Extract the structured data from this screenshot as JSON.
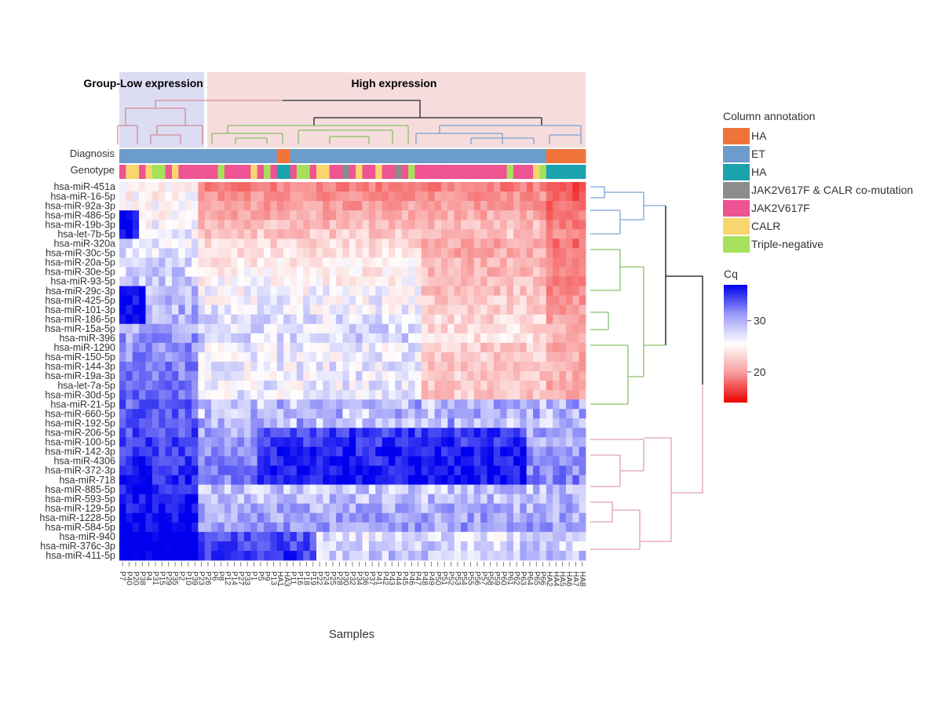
{
  "chart_data": {
    "type": "heatmap",
    "title": "",
    "xlabel": "Samples",
    "ylabel": "",
    "groups": {
      "prefix": "Group-",
      "items": [
        {
          "label": "Low expression",
          "color": "#dcdcf2"
        },
        {
          "label": "High expression",
          "color": "#f6dcdc"
        }
      ]
    },
    "row_annotation_labels": [
      "Diagnosis",
      "Genotype"
    ],
    "legend": {
      "title": "Column annotation",
      "position": "right",
      "items": [
        {
          "label": "HA",
          "color": "#f0743a"
        },
        {
          "label": "ET",
          "color": "#6c9ccb"
        },
        {
          "label": "HA",
          "color": "#1aa3ac"
        },
        {
          "label": "JAK2V617F & CALR co-mutation",
          "color": "#8c8c8c"
        },
        {
          "label": "JAK2V617F",
          "color": "#ee5392"
        },
        {
          "label": "CALR",
          "color": "#f9d56e"
        },
        {
          "label": "Triple-negative",
          "color": "#a6e15c"
        }
      ]
    },
    "colorbar": {
      "title": "Cq",
      "range": [
        14,
        37
      ],
      "ticks": [
        20,
        30
      ],
      "colors": {
        "low": "#ee0000",
        "mid": "#ffffff",
        "high": "#0000ee"
      }
    },
    "rows": [
      "hsa-miR-451a",
      "hsa-miR-16-5p",
      "hsa-miR-92a-3p",
      "hsa-miR-486-5p",
      "hsa-miR-19b-3p",
      "hsa-let-7b-5p",
      "hsa-miR-320a",
      "hsa-miR-30c-5p",
      "hsa-miR-20a-5p",
      "hsa-miR-30e-5p",
      "hsa-miR-93-5p",
      "hsa-miR-29c-3p",
      "hsa-miR-425-5p",
      "hsa-miR-101-3p",
      "hsa-miR-186-5p",
      "hsa-miR-15a-5p",
      "hsa-miR-396",
      "hsa-miR-1290",
      "hsa-miR-150-5p",
      "hsa-miR-144-3p",
      "hsa-miR-19a-3p",
      "hsa-let-7a-5p",
      "hsa-miR-30d-5p",
      "hsa-miR-21-5p",
      "hsa-miR-660-5p",
      "hsa-miR-192-5p",
      "hsa-miR-206-5p",
      "hsa-miR-100-5p",
      "hsa-miR-142-3p",
      "hsa-miR-4306",
      "hsa-miR-372-3p",
      "hsa-miR-718",
      "hsa-miR-885-5p",
      "hsa-miR-593-5p",
      "hsa-miR-129-5p",
      "hsa-miR-1228-5p",
      "hsa-miR-584-5p",
      "hsa-miR-940",
      "hsa-miR-376c-3p",
      "hsa-miR-411-5p"
    ],
    "columns": [
      "P7",
      "P40",
      "P20",
      "P38",
      "P4",
      "P31",
      "P15",
      "P29",
      "P35",
      "P2",
      "P10",
      "P39",
      "P23",
      "P26",
      "P6",
      "P8",
      "P12",
      "P14",
      "P27",
      "P33",
      "P1",
      "P5",
      "P9",
      "P13",
      "HA1",
      "HA3",
      "P11",
      "P16",
      "P18",
      "P19",
      "P22",
      "P24",
      "P25",
      "P28",
      "P30",
      "P32",
      "P34",
      "P36",
      "P37",
      "P41",
      "P42",
      "P43",
      "P44",
      "P45",
      "P46",
      "P47",
      "P48",
      "P49",
      "P50",
      "P51",
      "P52",
      "P53",
      "P54",
      "P55",
      "P56",
      "P57",
      "P58",
      "P59",
      "P60",
      "P61",
      "P62",
      "P63",
      "P64",
      "P65",
      "P66",
      "HA2",
      "HA4",
      "HA5",
      "HA6",
      "HA7",
      "HA8"
    ],
    "diagnosis": [
      "ET",
      "ET",
      "ET",
      "ET",
      "ET",
      "ET",
      "ET",
      "ET",
      "ET",
      "ET",
      "ET",
      "ET",
      "ET",
      "ET",
      "ET",
      "ET",
      "ET",
      "ET",
      "ET",
      "ET",
      "ET",
      "ET",
      "ET",
      "ET",
      "HA",
      "HA",
      "ET",
      "ET",
      "ET",
      "ET",
      "ET",
      "ET",
      "ET",
      "ET",
      "ET",
      "ET",
      "ET",
      "ET",
      "ET",
      "ET",
      "ET",
      "ET",
      "ET",
      "ET",
      "ET",
      "ET",
      "ET",
      "ET",
      "ET",
      "ET",
      "ET",
      "ET",
      "ET",
      "ET",
      "ET",
      "ET",
      "ET",
      "ET",
      "ET",
      "ET",
      "ET",
      "ET",
      "ET",
      "ET",
      "ET",
      "HA",
      "HA",
      "HA",
      "HA",
      "HA",
      "HA"
    ],
    "genotype": [
      "JAK2V617F",
      "CALR",
      "CALR",
      "JAK2V617F",
      "CALR",
      "Triple-negative",
      "Triple-negative",
      "JAK2V617F",
      "CALR",
      "JAK2V617F",
      "JAK2V617F",
      "JAK2V617F",
      "JAK2V617F",
      "JAK2V617F",
      "JAK2V617F",
      "Triple-negative",
      "JAK2V617F",
      "JAK2V617F",
      "JAK2V617F",
      "JAK2V617F",
      "CALR",
      "JAK2V617F",
      "Triple-negative",
      "JAK2V617F",
      "HA",
      "HA",
      "JAK2V617F",
      "Triple-negative",
      "Triple-negative",
      "JAK2V617F",
      "CALR",
      "CALR",
      "JAK2V617F",
      "JAK2V617F",
      "co-mutation",
      "JAK2V617F",
      "CALR",
      "JAK2V617F",
      "JAK2V617F",
      "CALR",
      "JAK2V617F",
      "JAK2V617F",
      "co-mutation",
      "JAK2V617F",
      "Triple-negative",
      "JAK2V617F",
      "JAK2V617F",
      "JAK2V617F",
      "JAK2V617F",
      "JAK2V617F",
      "JAK2V617F",
      "JAK2V617F",
      "JAK2V617F",
      "JAK2V617F",
      "JAK2V617F",
      "JAK2V617F",
      "JAK2V617F",
      "JAK2V617F",
      "JAK2V617F",
      "Triple-negative",
      "JAK2V617F",
      "JAK2V617F",
      "JAK2V617F",
      "CALR",
      "Triple-negative",
      "HA",
      "HA",
      "HA",
      "HA",
      "HA",
      "HA"
    ],
    "values_note": "Cq values per cell are approximate, reconstructed from colour: red = low Cq (high expression), blue = high Cq (low expression)."
  }
}
